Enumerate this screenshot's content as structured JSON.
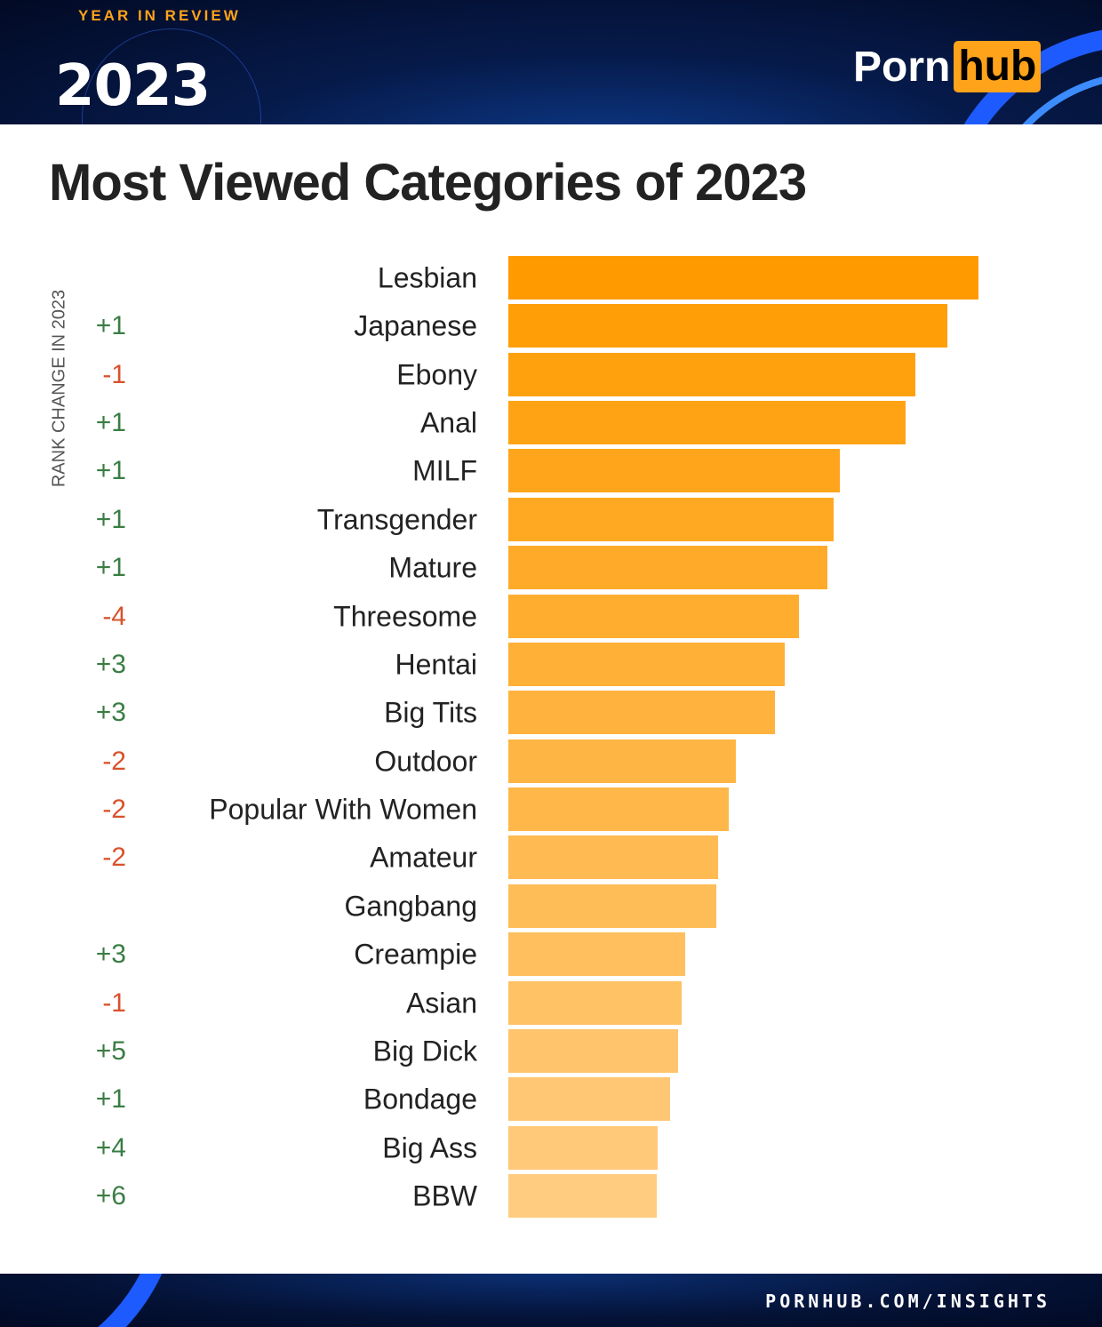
{
  "header": {
    "badge_text": "YEAR IN REVIEW",
    "year": "2023",
    "logo_left": "Porn",
    "logo_right": "hub"
  },
  "footer": {
    "url": "PORNHUB.COM/INSIGHTS"
  },
  "colors": {
    "bar_top": "#ff9b00",
    "bar_bottom": "#ffcc80",
    "positive": "#3a7d44",
    "negative": "#d9512c",
    "brand": "#ffa31a"
  },
  "chart_data": {
    "type": "bar",
    "orientation": "horizontal",
    "title": "Most Viewed Categories of 2023",
    "side_label": "RANK CHANGE IN 2023",
    "value_note": "relative bar length, Lesbian = 100 (no axis printed)",
    "categories": [
      "Lesbian",
      "Japanese",
      "Ebony",
      "Anal",
      "MILF",
      "Transgender",
      "Mature",
      "Threesome",
      "Hentai",
      "Big Tits",
      "Outdoor",
      "Popular With Women",
      "Amateur",
      "Gangbang",
      "Creampie",
      "Asian",
      "Big Dick",
      "Bondage",
      "Big Ass",
      "BBW"
    ],
    "values": [
      100,
      93.4,
      86.6,
      84.5,
      70.5,
      69.2,
      67.9,
      61.8,
      58.8,
      56.7,
      48.4,
      46.9,
      44.6,
      44.2,
      37.6,
      36.9,
      36.1,
      34.4,
      31.8,
      31.6
    ],
    "rank_change": [
      "",
      "+1",
      "-1",
      "+1",
      "+1",
      "+1",
      "+1",
      "-4",
      "+3",
      "+3",
      "-2",
      "-2",
      "-2",
      "",
      "+3",
      "-1",
      "+5",
      "+1",
      "+4",
      "+6"
    ],
    "grid": false,
    "legend": "none"
  }
}
